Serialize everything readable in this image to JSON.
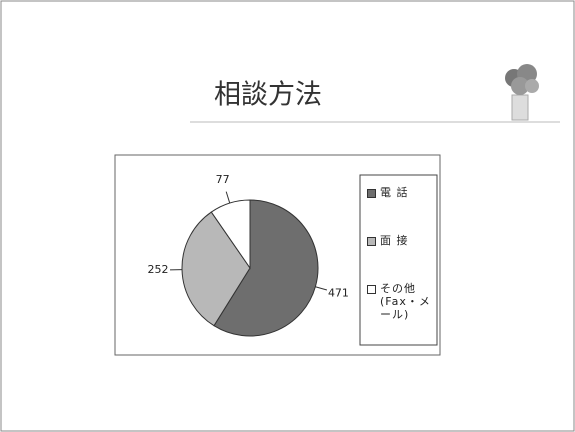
{
  "chart_data": {
    "type": "pie",
    "title": "相談方法",
    "categories": [
      "電 話",
      "面 接",
      "その他 (Fax・メール)"
    ],
    "values": [
      471,
      252,
      77
    ],
    "colors": [
      "#6e6e6e",
      "#b8b8b8",
      "#ffffff"
    ]
  }
}
